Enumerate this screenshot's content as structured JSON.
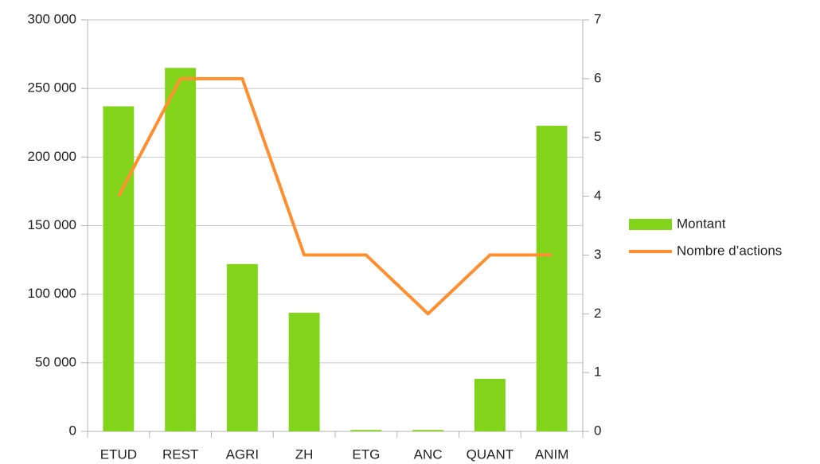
{
  "chart_data": {
    "type": "bar",
    "categories": [
      "ETUD",
      "REST",
      "AGRI",
      "ZH",
      "ETG",
      "ANC",
      "QUANT",
      "ANIM"
    ],
    "series": [
      {
        "name": "Montant",
        "type": "bar",
        "color": "#81d41a",
        "values": [
          237000,
          265000,
          122000,
          86500,
          1000,
          1000,
          38300,
          222800
        ]
      },
      {
        "name": "Nombre d’actions",
        "type": "line",
        "axis": "y2",
        "color": "#ff8f2e",
        "values": [
          4,
          6,
          6,
          3,
          3,
          2,
          3,
          3
        ]
      }
    ],
    "ylim": [
      0,
      300000
    ],
    "yticks": [
      0,
      {
        "value": 50000,
        "label": "50 000"
      },
      {
        "value": 100000,
        "label": "100 000"
      },
      {
        "value": 150000,
        "label": "150 000"
      },
      {
        "value": 200000,
        "label": "200 000"
      },
      {
        "value": 250000,
        "label": "250 000"
      },
      {
        "value": 300000,
        "label": "300 000"
      }
    ],
    "y2lim": [
      0,
      7
    ],
    "y2ticks": [
      0,
      1,
      2,
      3,
      4,
      5,
      6,
      7
    ],
    "grid": true,
    "legend": "right"
  }
}
